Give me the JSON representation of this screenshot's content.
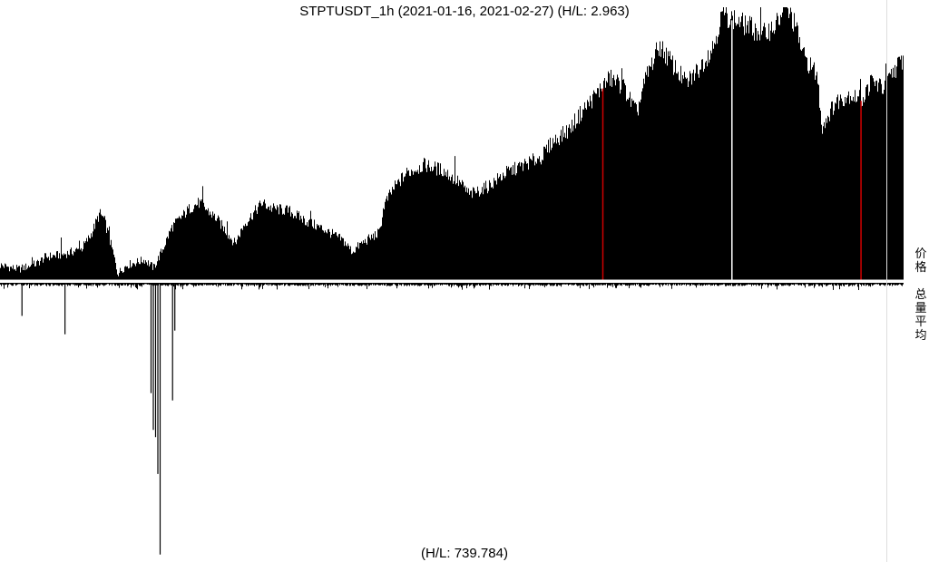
{
  "chart_data": {
    "type": "area",
    "title": "STPTUSDT_1h (2021-01-16, 2021-02-27) (H/L: 2.963)",
    "footer": "(H/L: 739.784)",
    "price_label": "价格",
    "volume_label": "总量平均",
    "start_date": "2021-01-16",
    "end_date": "2021-02-27",
    "interval": "1h",
    "price_ratio_hl": 2.963,
    "volume_ratio_hl": 739.784,
    "colors": {
      "bars": "#000000",
      "markers": "#d00000",
      "separator": "#ffffff",
      "divider": "#dddddd"
    },
    "price_markers": [
      {
        "date": "2021-02-13",
        "color": "#d00000"
      },
      {
        "date": "2021-02-19",
        "color": "#ffffff"
      },
      {
        "date": "2021-02-25",
        "color": "#d00000"
      }
    ],
    "price_profile": [
      [
        0.0,
        1.06
      ],
      [
        0.02,
        1.03
      ],
      [
        0.04,
        1.07
      ],
      [
        0.05,
        1.12
      ],
      [
        0.07,
        1.14
      ],
      [
        0.09,
        1.18
      ],
      [
        0.1,
        1.28
      ],
      [
        0.11,
        1.44
      ],
      [
        0.115,
        1.4
      ],
      [
        0.125,
        1.15
      ],
      [
        0.13,
        1.0
      ],
      [
        0.14,
        1.06
      ],
      [
        0.16,
        1.1
      ],
      [
        0.17,
        1.04
      ],
      [
        0.18,
        1.18
      ],
      [
        0.19,
        1.34
      ],
      [
        0.21,
        1.48
      ],
      [
        0.22,
        1.52
      ],
      [
        0.24,
        1.4
      ],
      [
        0.26,
        1.22
      ],
      [
        0.27,
        1.36
      ],
      [
        0.29,
        1.52
      ],
      [
        0.3,
        1.48
      ],
      [
        0.32,
        1.46
      ],
      [
        0.34,
        1.38
      ],
      [
        0.36,
        1.32
      ],
      [
        0.38,
        1.24
      ],
      [
        0.39,
        1.16
      ],
      [
        0.4,
        1.22
      ],
      [
        0.42,
        1.3
      ],
      [
        0.425,
        1.5
      ],
      [
        0.435,
        1.62
      ],
      [
        0.45,
        1.74
      ],
      [
        0.47,
        1.8
      ],
      [
        0.49,
        1.76
      ],
      [
        0.51,
        1.66
      ],
      [
        0.52,
        1.58
      ],
      [
        0.54,
        1.64
      ],
      [
        0.56,
        1.74
      ],
      [
        0.58,
        1.8
      ],
      [
        0.6,
        1.86
      ],
      [
        0.61,
        1.96
      ],
      [
        0.63,
        2.06
      ],
      [
        0.645,
        2.2
      ],
      [
        0.66,
        2.32
      ],
      [
        0.675,
        2.44
      ],
      [
        0.69,
        2.38
      ],
      [
        0.705,
        2.18
      ],
      [
        0.715,
        2.44
      ],
      [
        0.73,
        2.68
      ],
      [
        0.745,
        2.54
      ],
      [
        0.76,
        2.4
      ],
      [
        0.775,
        2.52
      ],
      [
        0.79,
        2.68
      ],
      [
        0.8,
        2.92
      ],
      [
        0.815,
        2.86
      ],
      [
        0.83,
        2.82
      ],
      [
        0.845,
        2.76
      ],
      [
        0.86,
        2.84
      ],
      [
        0.87,
        2.96
      ],
      [
        0.88,
        2.84
      ],
      [
        0.89,
        2.6
      ],
      [
        0.905,
        2.46
      ],
      [
        0.91,
        2.08
      ],
      [
        0.925,
        2.26
      ],
      [
        0.94,
        2.32
      ],
      [
        0.955,
        2.28
      ],
      [
        0.965,
        2.42
      ],
      [
        0.98,
        2.36
      ],
      [
        0.99,
        2.5
      ],
      [
        1.0,
        2.58
      ]
    ],
    "volume_spikes": [
      {
        "date": "2021-01-17",
        "value": 90
      },
      {
        "date": "2021-01-19",
        "value": 140
      },
      {
        "date": "2021-01-23",
        "value": 300
      },
      {
        "date": "2021-01-23",
        "value": 400
      },
      {
        "date": "2021-01-23",
        "value": 420
      },
      {
        "date": "2021-01-23",
        "value": 520
      },
      {
        "date": "2021-01-23",
        "value": 739
      },
      {
        "date": "2021-01-24",
        "value": 320
      },
      {
        "date": "2021-01-24",
        "value": 130
      }
    ]
  }
}
